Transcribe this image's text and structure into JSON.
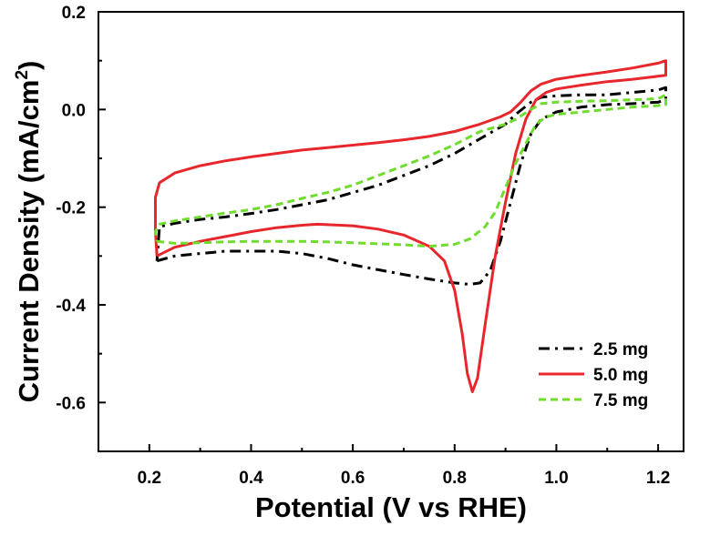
{
  "chart_data": {
    "type": "line",
    "xlabel": "Potential (V vs RHE)",
    "ylabel_main": "Current Density (mA/cm",
    "ylabel_sup": "2",
    "ylabel_close": ")",
    "xlim": [
      0.1,
      1.25
    ],
    "ylim": [
      -0.7,
      0.2
    ],
    "xticks": [
      0.2,
      0.4,
      0.6,
      0.8,
      1.0,
      1.2
    ],
    "xtick_labels": [
      "0.2",
      "0.4",
      "0.6",
      "0.8",
      "1.0",
      "1.2"
    ],
    "yticks": [
      0.2,
      0.0,
      -0.2,
      -0.4,
      -0.6
    ],
    "ytick_labels": [
      "0.2",
      "0.0",
      "-0.2",
      "-0.4",
      "-0.6"
    ],
    "grid": false,
    "legend_position": "bottom-right",
    "series": [
      {
        "name": "2.5 mg",
        "color": "#000000",
        "style": "dash-dot",
        "points": [
          [
            0.215,
            -0.31
          ],
          [
            0.25,
            -0.3
          ],
          [
            0.3,
            -0.295
          ],
          [
            0.35,
            -0.29
          ],
          [
            0.4,
            -0.29
          ],
          [
            0.45,
            -0.29
          ],
          [
            0.5,
            -0.295
          ],
          [
            0.55,
            -0.305
          ],
          [
            0.6,
            -0.318
          ],
          [
            0.65,
            -0.328
          ],
          [
            0.7,
            -0.338
          ],
          [
            0.75,
            -0.347
          ],
          [
            0.8,
            -0.355
          ],
          [
            0.83,
            -0.358
          ],
          [
            0.85,
            -0.355
          ],
          [
            0.87,
            -0.33
          ],
          [
            0.89,
            -0.27
          ],
          [
            0.91,
            -0.19
          ],
          [
            0.93,
            -0.11
          ],
          [
            0.95,
            -0.05
          ],
          [
            0.97,
            -0.02
          ],
          [
            1.0,
            -0.005
          ],
          [
            1.05,
            0.005
          ],
          [
            1.1,
            0.01
          ],
          [
            1.15,
            0.012
          ],
          [
            1.2,
            0.015
          ],
          [
            1.215,
            0.02
          ],
          [
            1.215,
            0.045
          ],
          [
            1.2,
            0.04
          ],
          [
            1.15,
            0.035
          ],
          [
            1.1,
            0.03
          ],
          [
            1.05,
            0.03
          ],
          [
            1.0,
            0.028
          ],
          [
            0.97,
            0.025
          ],
          [
            0.95,
            0.015
          ],
          [
            0.92,
            -0.01
          ],
          [
            0.9,
            -0.03
          ],
          [
            0.85,
            -0.06
          ],
          [
            0.8,
            -0.09
          ],
          [
            0.75,
            -0.115
          ],
          [
            0.7,
            -0.135
          ],
          [
            0.65,
            -0.155
          ],
          [
            0.6,
            -0.17
          ],
          [
            0.55,
            -0.185
          ],
          [
            0.5,
            -0.195
          ],
          [
            0.45,
            -0.205
          ],
          [
            0.4,
            -0.213
          ],
          [
            0.35,
            -0.22
          ],
          [
            0.3,
            -0.225
          ],
          [
            0.25,
            -0.233
          ],
          [
            0.22,
            -0.24
          ],
          [
            0.215,
            -0.31
          ]
        ]
      },
      {
        "name": "5.0 mg",
        "color": "#e8272c",
        "style": "solid",
        "points": [
          [
            0.215,
            -0.3
          ],
          [
            0.25,
            -0.282
          ],
          [
            0.3,
            -0.27
          ],
          [
            0.35,
            -0.26
          ],
          [
            0.4,
            -0.25
          ],
          [
            0.45,
            -0.242
          ],
          [
            0.5,
            -0.237
          ],
          [
            0.53,
            -0.235
          ],
          [
            0.6,
            -0.238
          ],
          [
            0.65,
            -0.245
          ],
          [
            0.7,
            -0.257
          ],
          [
            0.75,
            -0.28
          ],
          [
            0.78,
            -0.31
          ],
          [
            0.8,
            -0.37
          ],
          [
            0.815,
            -0.46
          ],
          [
            0.825,
            -0.54
          ],
          [
            0.835,
            -0.578
          ],
          [
            0.845,
            -0.55
          ],
          [
            0.86,
            -0.44
          ],
          [
            0.88,
            -0.3
          ],
          [
            0.9,
            -0.19
          ],
          [
            0.92,
            -0.09
          ],
          [
            0.94,
            -0.02
          ],
          [
            0.96,
            0.02
          ],
          [
            0.98,
            0.035
          ],
          [
            1.0,
            0.042
          ],
          [
            1.05,
            0.05
          ],
          [
            1.1,
            0.057
          ],
          [
            1.15,
            0.062
          ],
          [
            1.2,
            0.068
          ],
          [
            1.215,
            0.07
          ],
          [
            1.215,
            0.1
          ],
          [
            1.2,
            0.095
          ],
          [
            1.15,
            0.085
          ],
          [
            1.1,
            0.077
          ],
          [
            1.05,
            0.07
          ],
          [
            1.0,
            0.062
          ],
          [
            0.97,
            0.052
          ],
          [
            0.95,
            0.038
          ],
          [
            0.93,
            0.015
          ],
          [
            0.91,
            -0.005
          ],
          [
            0.89,
            -0.015
          ],
          [
            0.85,
            -0.03
          ],
          [
            0.8,
            -0.045
          ],
          [
            0.75,
            -0.055
          ],
          [
            0.7,
            -0.062
          ],
          [
            0.65,
            -0.068
          ],
          [
            0.6,
            -0.073
          ],
          [
            0.55,
            -0.078
          ],
          [
            0.5,
            -0.083
          ],
          [
            0.45,
            -0.09
          ],
          [
            0.4,
            -0.097
          ],
          [
            0.35,
            -0.105
          ],
          [
            0.3,
            -0.115
          ],
          [
            0.25,
            -0.13
          ],
          [
            0.22,
            -0.15
          ],
          [
            0.212,
            -0.18
          ],
          [
            0.212,
            -0.25
          ],
          [
            0.215,
            -0.3
          ]
        ]
      },
      {
        "name": "7.5 mg",
        "color": "#6fdc2e",
        "style": "dashed",
        "points": [
          [
            0.215,
            -0.27
          ],
          [
            0.25,
            -0.274
          ],
          [
            0.3,
            -0.273
          ],
          [
            0.35,
            -0.271
          ],
          [
            0.4,
            -0.27
          ],
          [
            0.45,
            -0.27
          ],
          [
            0.5,
            -0.27
          ],
          [
            0.55,
            -0.271
          ],
          [
            0.6,
            -0.273
          ],
          [
            0.65,
            -0.275
          ],
          [
            0.7,
            -0.277
          ],
          [
            0.75,
            -0.28
          ],
          [
            0.8,
            -0.276
          ],
          [
            0.83,
            -0.265
          ],
          [
            0.86,
            -0.24
          ],
          [
            0.88,
            -0.21
          ],
          [
            0.9,
            -0.16
          ],
          [
            0.92,
            -0.11
          ],
          [
            0.94,
            -0.07
          ],
          [
            0.96,
            -0.03
          ],
          [
            0.98,
            -0.015
          ],
          [
            1.0,
            -0.01
          ],
          [
            1.05,
            -0.005
          ],
          [
            1.1,
            0.0
          ],
          [
            1.15,
            0.005
          ],
          [
            1.2,
            0.008
          ],
          [
            1.215,
            0.01
          ],
          [
            1.215,
            0.03
          ],
          [
            1.2,
            0.022
          ],
          [
            1.15,
            0.02
          ],
          [
            1.1,
            0.018
          ],
          [
            1.05,
            0.017
          ],
          [
            1.0,
            0.015
          ],
          [
            0.97,
            0.012
          ],
          [
            0.95,
            0.0
          ],
          [
            0.92,
            -0.02
          ],
          [
            0.9,
            -0.03
          ],
          [
            0.85,
            -0.045
          ],
          [
            0.8,
            -0.072
          ],
          [
            0.75,
            -0.095
          ],
          [
            0.7,
            -0.115
          ],
          [
            0.65,
            -0.135
          ],
          [
            0.6,
            -0.155
          ],
          [
            0.55,
            -0.17
          ],
          [
            0.5,
            -0.182
          ],
          [
            0.45,
            -0.195
          ],
          [
            0.4,
            -0.205
          ],
          [
            0.35,
            -0.212
          ],
          [
            0.3,
            -0.22
          ],
          [
            0.25,
            -0.228
          ],
          [
            0.22,
            -0.235
          ],
          [
            0.212,
            -0.25
          ],
          [
            0.215,
            -0.27
          ]
        ]
      }
    ]
  }
}
